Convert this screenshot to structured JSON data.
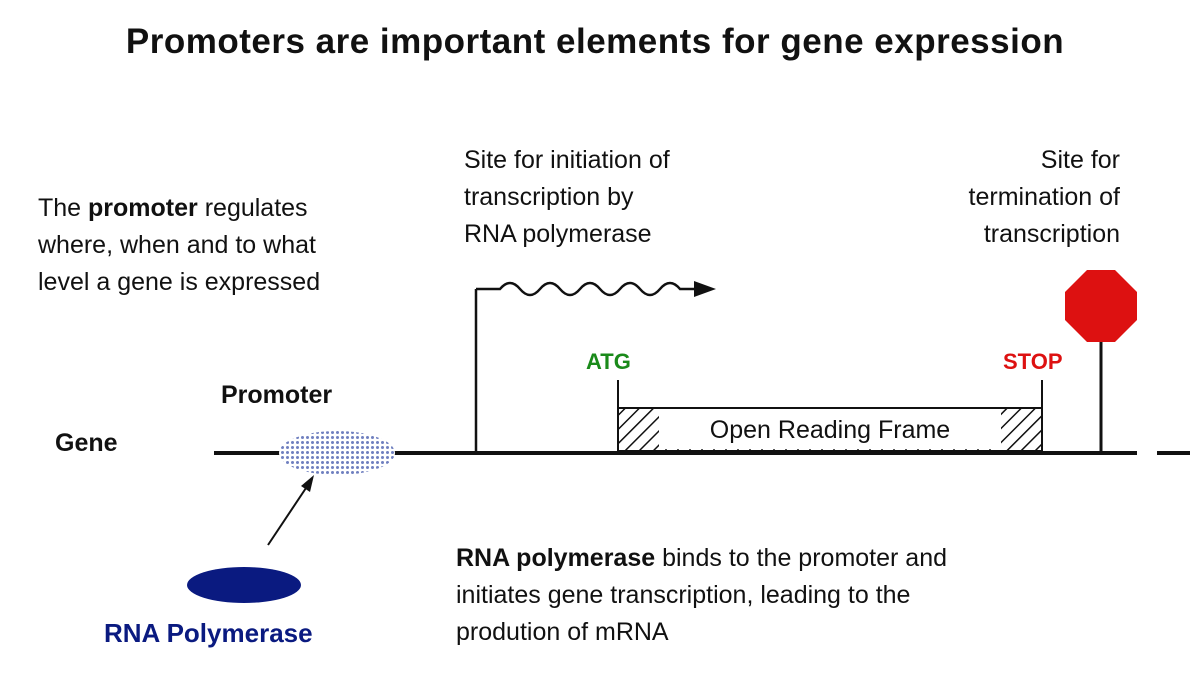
{
  "title": "Promoters are important elements for gene expression",
  "promoter_note": {
    "prefix": "The ",
    "bold": "promoter",
    "line1_rest": " regulates",
    "line2": "where, when and to what",
    "line3": "level a gene is expressed"
  },
  "initiation_note": [
    "Site for initiation of",
    "transcription by",
    "RNA polymerase"
  ],
  "termination_note": [
    "Site for",
    "termination of",
    "transcription"
  ],
  "labels": {
    "gene": "Gene",
    "promoter": "Promoter",
    "atg": "ATG",
    "stop": "STOP",
    "orf": "Open Reading Frame",
    "rna_polymerase": "RNA Polymerase"
  },
  "binding_note": {
    "bold": "RNA polymerase",
    "line1_rest": " binds to the promoter and",
    "line2": "initiates gene transcription, leading to the",
    "line3": "prodution of mRNA"
  },
  "colors": {
    "atg": "#1a8a1a",
    "stop": "#dd1111",
    "stop_sign": "#dd1111",
    "rna_polymerase": "#0a1a80",
    "promoter_dots": "#7080c0"
  }
}
